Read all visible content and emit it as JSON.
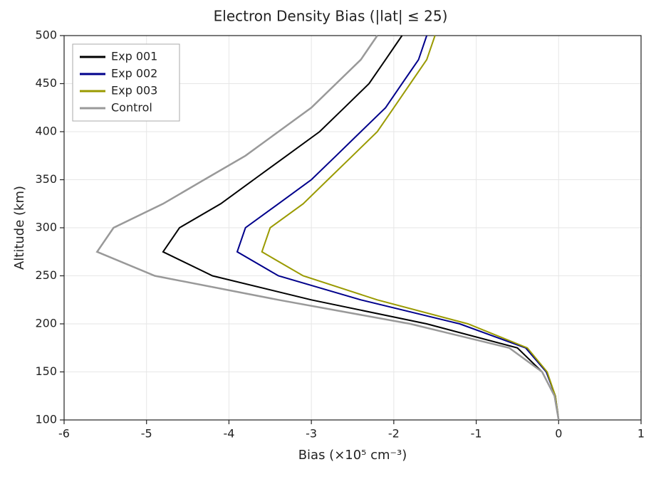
{
  "chart_data": {
    "type": "line",
    "title": "Electron Density Bias (|lat| ≤ 25)",
    "x_label": "Bias (×10⁵ cm⁻³)",
    "y_label": "Altitude (km)",
    "y": [
      100,
      125,
      150,
      175,
      200,
      225,
      250,
      275,
      300,
      325,
      350,
      375,
      400,
      425,
      450,
      475,
      500
    ],
    "series": [
      {
        "name": "Exp 001",
        "color": "#000000",
        "values": [
          0,
          -0.05,
          -0.2,
          -0.5,
          -1.6,
          -3.0,
          -4.2,
          -4.8,
          -4.6,
          -4.1,
          -3.7,
          -3.3,
          -2.9,
          -2.6,
          -2.3,
          -2.1,
          -1.9
        ]
      },
      {
        "name": "Exp 002",
        "color": "#00008b",
        "values": [
          0,
          -0.04,
          -0.15,
          -0.4,
          -1.2,
          -2.4,
          -3.4,
          -3.9,
          -3.8,
          -3.4,
          -3.0,
          -2.7,
          -2.4,
          -2.1,
          -1.9,
          -1.7,
          -1.6
        ]
      },
      {
        "name": "Exp 003",
        "color": "#9a9a00",
        "values": [
          0,
          -0.04,
          -0.14,
          -0.38,
          -1.1,
          -2.2,
          -3.1,
          -3.6,
          -3.5,
          -3.1,
          -2.8,
          -2.5,
          -2.2,
          -2.0,
          -1.8,
          -1.6,
          -1.5
        ]
      },
      {
        "name": "Control",
        "color": "#999999",
        "values": [
          0,
          -0.05,
          -0.2,
          -0.6,
          -1.8,
          -3.4,
          -4.9,
          -5.6,
          -5.4,
          -4.8,
          -4.3,
          -3.8,
          -3.4,
          -3.0,
          -2.7,
          -2.4,
          -2.2
        ]
      }
    ],
    "xlim": [
      -6,
      1
    ],
    "xticks": [
      -6,
      -5,
      -4,
      -3,
      -2,
      -1,
      0,
      1
    ],
    "ylim": [
      100,
      500
    ],
    "yticks": [
      100,
      150,
      200,
      250,
      300,
      350,
      400,
      450,
      500
    ],
    "grid": true,
    "legend": "upper-left"
  }
}
